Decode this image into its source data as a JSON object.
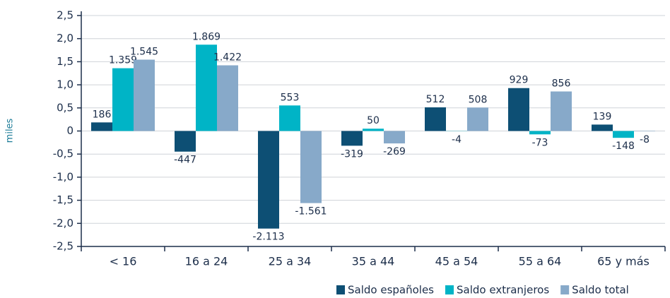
{
  "chart_data": {
    "type": "bar",
    "y_label": "miles",
    "categories": [
      "< 16",
      "16 a 24",
      "25 a 34",
      "35 a 44",
      "45 a 54",
      "55 a 64",
      "65 y más"
    ],
    "series": [
      {
        "name": "Saldo españoles",
        "color": "#0d4f74",
        "values": [
          0.186,
          -0.447,
          -2.113,
          -0.319,
          0.512,
          0.929,
          0.139
        ],
        "value_labels": [
          "186",
          "-447",
          "-2.113",
          "-319",
          "512",
          "929",
          "139"
        ]
      },
      {
        "name": "Saldo extranjeros",
        "color": "#00b4c6",
        "values": [
          1.359,
          1.869,
          0.553,
          0.05,
          -0.004,
          -0.073,
          -0.148
        ],
        "value_labels": [
          "1.359",
          "1.869",
          "553",
          "50",
          "-4",
          "-73",
          "-148"
        ]
      },
      {
        "name": "Saldo total",
        "color": "#87a9c9",
        "values": [
          1.545,
          1.422,
          -1.561,
          -0.269,
          0.508,
          0.856,
          -0.008
        ],
        "value_labels": [
          "1.545",
          "1.422",
          "-1.561",
          "-269",
          "508",
          "856",
          "-8"
        ]
      }
    ],
    "ylim": [
      -2.5,
      2.5
    ],
    "yticks": [
      {
        "value": -2.5,
        "label": "-2,5"
      },
      {
        "value": -2,
        "label": "-2,0"
      },
      {
        "value": -1.5,
        "label": "-1,5"
      },
      {
        "value": -1,
        "label": "-1,0"
      },
      {
        "value": -0.5,
        "label": "-0,5"
      },
      0,
      {
        "value": 0.5,
        "label": "0,5"
      },
      {
        "value": 1,
        "label": "1,0"
      },
      {
        "value": 1.5,
        "label": "1,5"
      },
      {
        "value": 2,
        "label": "2,0"
      },
      {
        "value": 2.5,
        "label": "2,5"
      }
    ],
    "grid": true,
    "legend": "bottom-right"
  }
}
